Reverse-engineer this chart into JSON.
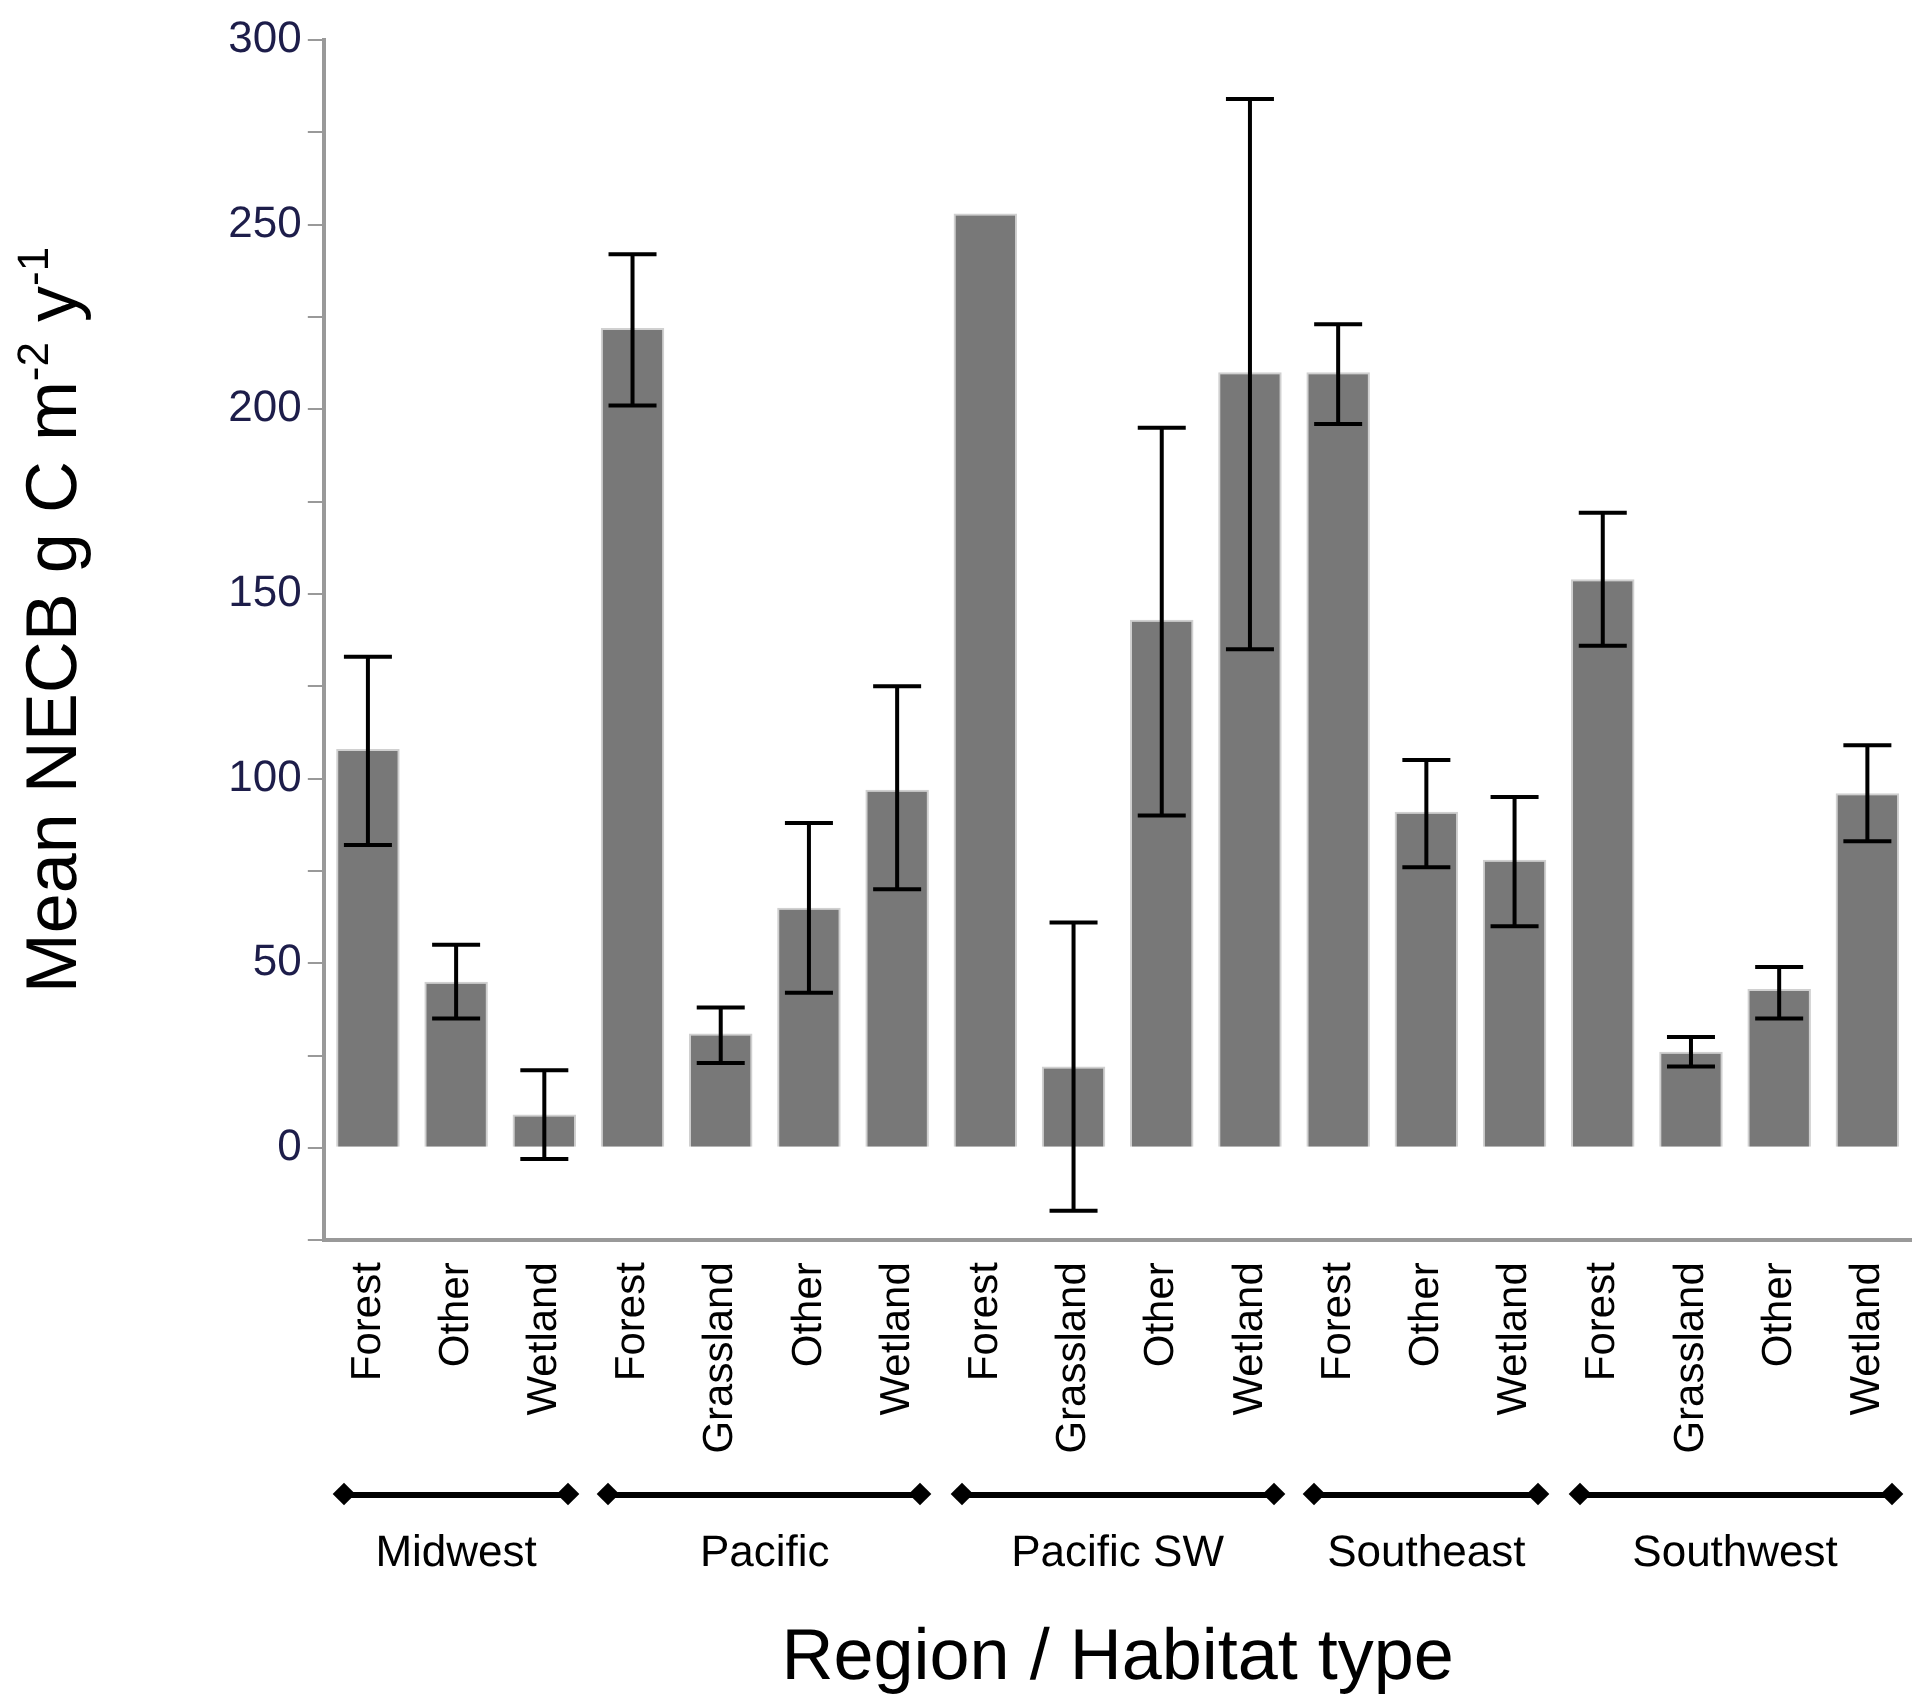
{
  "chart_data": {
    "type": "bar",
    "ylabel": "Mean NECB g C m$^{-2}$ y$^{-1}$",
    "xlabel": "Region / Habitat type",
    "categories": [
      "Forest",
      "Other",
      "Wetland",
      "Forest",
      "Grassland",
      "Other",
      "Wetland",
      "Forest",
      "Grassland",
      "Other",
      "Wetland",
      "Forest",
      "Other",
      "Wetland",
      "Forest",
      "Grassland",
      "Other",
      "Wetland"
    ],
    "values": [
      108,
      45,
      9,
      222,
      31,
      65,
      97,
      253,
      22,
      143,
      210,
      210,
      91,
      78,
      154,
      26,
      43,
      96
    ],
    "errors": [
      [
        82,
        133
      ],
      [
        35,
        55
      ],
      [
        -3,
        21
      ],
      [
        201,
        242
      ],
      [
        23,
        38
      ],
      [
        42,
        88
      ],
      [
        70,
        125
      ],
      null,
      [
        -17,
        61
      ],
      [
        90,
        195
      ],
      [
        135,
        284
      ],
      [
        196,
        223
      ],
      [
        76,
        105
      ],
      [
        60,
        95
      ],
      [
        136,
        172
      ],
      [
        22,
        30
      ],
      [
        35,
        49
      ],
      [
        83,
        109
      ]
    ],
    "color": "#787878",
    "ylim": [
      -25,
      300
    ],
    "yticks": [
      {
        "value": -25,
        "label": null
      },
      0,
      {
        "value": 25,
        "label": null
      },
      50,
      {
        "value": 75,
        "label": null
      },
      100,
      {
        "value": 125,
        "label": null
      },
      150,
      {
        "value": 175,
        "label": null
      },
      200,
      {
        "value": 225,
        "label": null
      },
      250,
      {
        "value": 275,
        "label": null
      },
      300
    ],
    "annotations": [
      "Midwest",
      "Pacific",
      "Pacific SW",
      "Southeast",
      "Southwest"
    ],
    "grid": false,
    "legend": false
  }
}
